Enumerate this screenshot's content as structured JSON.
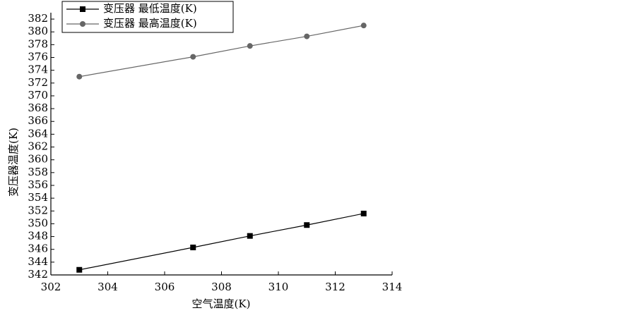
{
  "chart_data": {
    "type": "line",
    "x_label": "空气温度(K)",
    "y_label": "变压器温度(K)",
    "x": [
      303,
      307,
      309,
      311,
      313
    ],
    "series": [
      {
        "name": "变压器 最低温度(K)",
        "color": "#000000",
        "marker": "square",
        "values": [
          342.8,
          346.3,
          348.1,
          349.8,
          351.6
        ]
      },
      {
        "name": "变压器 最高温度(K)",
        "color": "#666666",
        "marker": "circle",
        "values": [
          373.0,
          376.1,
          377.8,
          379.3,
          381.0
        ]
      }
    ],
    "xlim": [
      302,
      314
    ],
    "xticks": [
      302,
      304,
      306,
      308,
      310,
      312,
      314
    ],
    "ylim": [
      342,
      383
    ],
    "yticks": [
      342,
      344,
      346,
      348,
      350,
      352,
      354,
      356,
      358,
      360,
      362,
      364,
      366,
      368,
      370,
      372,
      374,
      376,
      378,
      380,
      382
    ],
    "grid": false,
    "legend": "top-left"
  }
}
